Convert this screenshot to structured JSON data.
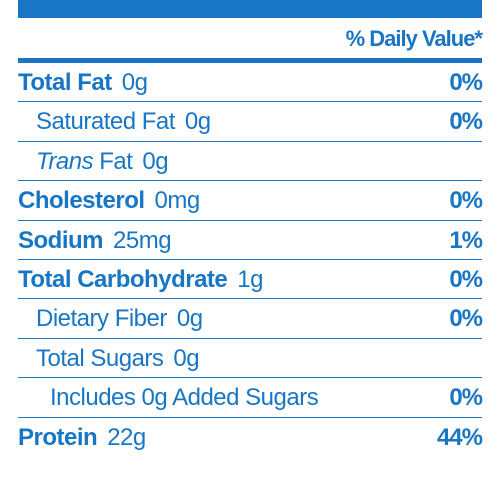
{
  "colors": {
    "primary": "#1976c5",
    "background": "#ffffff"
  },
  "header": {
    "dv_label": "% Daily Value*"
  },
  "rows": [
    {
      "label": "Total Fat",
      "amount": "0g",
      "dv": "0%",
      "bold": true,
      "indent": 0,
      "has_dv": true
    },
    {
      "label": "Saturated Fat",
      "amount": "0g",
      "dv": "0%",
      "bold": false,
      "indent": 1,
      "has_dv": true
    },
    {
      "label_italic": "Trans",
      "label_rest": " Fat",
      "amount": "0g",
      "dv": "",
      "bold": false,
      "indent": 1,
      "has_dv": false,
      "italic_first": true
    },
    {
      "label": "Cholesterol",
      "amount": "0mg",
      "dv": "0%",
      "bold": true,
      "indent": 0,
      "has_dv": true
    },
    {
      "label": "Sodium",
      "amount": "25mg",
      "dv": "1%",
      "bold": true,
      "indent": 0,
      "has_dv": true
    },
    {
      "label": "Total Carbohydrate",
      "amount": "1g",
      "dv": "0%",
      "bold": true,
      "indent": 0,
      "has_dv": true
    },
    {
      "label": "Dietary Fiber",
      "amount": "0g",
      "dv": "0%",
      "bold": false,
      "indent": 1,
      "has_dv": true
    },
    {
      "label": "Total Sugars",
      "amount": "0g",
      "dv": "",
      "bold": false,
      "indent": 1,
      "has_dv": false
    },
    {
      "label": "Includes 0g Added Sugars",
      "amount": "",
      "dv": "0%",
      "bold": false,
      "indent": 2,
      "has_dv": true
    },
    {
      "label": "Protein",
      "amount": "22g",
      "dv": "44%",
      "bold": true,
      "indent": 0,
      "has_dv": true,
      "cutoff": true
    }
  ]
}
